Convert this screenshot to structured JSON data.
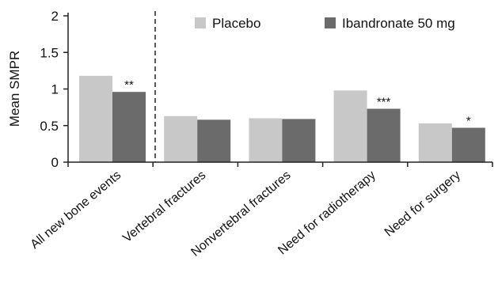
{
  "chart_data": {
    "type": "bar",
    "title": "",
    "xlabel": "",
    "ylabel": "Mean SMPR",
    "ylim": [
      0,
      2
    ],
    "yticks": [
      0,
      0.5,
      1,
      1.5,
      2
    ],
    "ytick_labels": [
      "0",
      "0.5",
      "1",
      "1.5",
      "2"
    ],
    "categories": [
      "All new bone events",
      "Vertebral fractures",
      "Nonvertebral fractures",
      "Need for radiotherapy",
      "Need for surgery"
    ],
    "series": [
      {
        "name": "Placebo",
        "color": "#c8c8c8",
        "values": [
          1.18,
          0.63,
          0.6,
          0.98,
          0.53
        ]
      },
      {
        "name": "Ibandronate 50 mg",
        "color": "#6b6b6b",
        "values": [
          0.96,
          0.58,
          0.59,
          0.73,
          0.47
        ]
      }
    ],
    "annotations": [
      "**",
      "",
      "",
      "***",
      "*"
    ],
    "legend_position": "top",
    "grid": false,
    "divider": "dashed vertical line after first category"
  }
}
